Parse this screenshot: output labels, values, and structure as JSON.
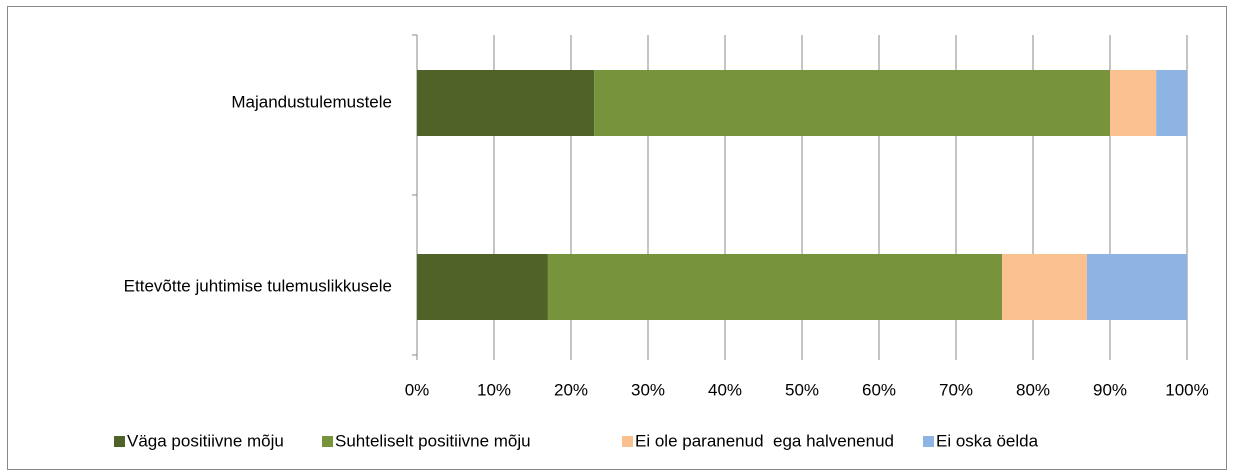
{
  "chart_data": {
    "type": "stacked_barh",
    "categories": [
      "Majandustulemustele",
      "Ettevõtte juhtimise tulemuslikkusele"
    ],
    "series": [
      {
        "name": "Väga positiivne mõju",
        "color": "#4f6228",
        "values": [
          23,
          17
        ]
      },
      {
        "name": "Suhteliselt positiivne mõju",
        "color": "#77933c",
        "values": [
          67,
          59
        ]
      },
      {
        "name": "Ei ole paranenud  ega halvenenud",
        "color": "#fac090",
        "values": [
          6,
          11
        ]
      },
      {
        "name": "Ei oska öelda",
        "color": "#8eb4e3",
        "values": [
          4,
          13
        ]
      }
    ],
    "xlim": [
      0,
      100
    ],
    "xticks": [
      {
        "value": 0,
        "label": "0%"
      },
      {
        "value": 10,
        "label": "10%"
      },
      {
        "value": 20,
        "label": "20%"
      },
      {
        "value": 30,
        "label": "30%"
      },
      {
        "value": 40,
        "label": "40%"
      },
      {
        "value": 50,
        "label": "50%"
      },
      {
        "value": 60,
        "label": "60%"
      },
      {
        "value": 70,
        "label": "70%"
      },
      {
        "value": 80,
        "label": "80%"
      },
      {
        "value": 90,
        "label": "90%"
      },
      {
        "value": 100,
        "label": "100%"
      }
    ],
    "grid": true,
    "legend": "bottom"
  }
}
